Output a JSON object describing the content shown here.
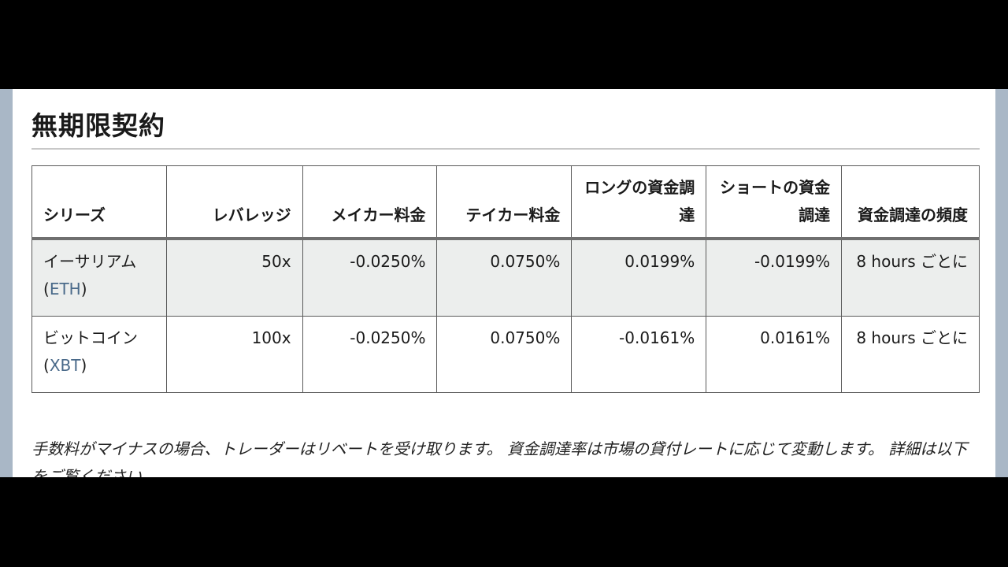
{
  "section": {
    "title": "無期限契約"
  },
  "table": {
    "headers": [
      "シリーズ",
      "レバレッジ",
      "メイカー料金",
      "テイカー料金",
      "ロングの資金調達",
      "ショートの資金調達",
      "資金調達の頻度"
    ],
    "rows": [
      {
        "series_name": "イーサリアム",
        "symbol": "ETH",
        "leverage": "50x",
        "maker_fee": "-0.0250%",
        "taker_fee": "0.0750%",
        "long_funding": "0.0199%",
        "short_funding": "-0.0199%",
        "frequency": "8 hours ごとに"
      },
      {
        "series_name": "ビットコイン",
        "symbol": "XBT",
        "leverage": "100x",
        "maker_fee": "-0.0250%",
        "taker_fee": "0.0750%",
        "long_funding": "-0.0161%",
        "short_funding": "0.0161%",
        "frequency": "8 hours ごとに"
      }
    ]
  },
  "note": "手数料がマイナスの場合、トレーダーはリベートを受け取ります。 資金調達率は市場の貸付レートに応じて変動します。 詳細は以下をご覧ください。",
  "colors": {
    "link": "#4a6a8a",
    "row_shade": "#eceeed"
  }
}
